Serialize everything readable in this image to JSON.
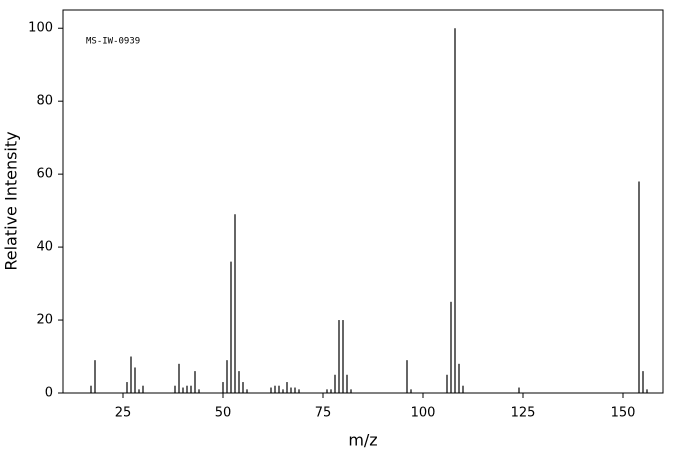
{
  "chart_data": {
    "type": "stem",
    "annotation": "MS-IW-0939",
    "xlabel": "m/z",
    "ylabel": "Relative Intensity",
    "x": [
      17,
      18,
      26,
      27,
      28,
      29,
      30,
      38,
      39,
      40,
      41,
      42,
      43,
      44,
      50,
      51,
      52,
      53,
      54,
      55,
      56,
      62,
      63,
      64,
      65,
      66,
      67,
      68,
      69,
      76,
      77,
      78,
      79,
      80,
      81,
      82,
      96,
      97,
      106,
      107,
      108,
      109,
      110,
      124,
      154,
      155,
      156
    ],
    "values": [
      2,
      9,
      3,
      10,
      7,
      1,
      2,
      2,
      8,
      1.5,
      2,
      2,
      6,
      1,
      3,
      9,
      36,
      49,
      6,
      3,
      1,
      1.5,
      2,
      2,
      1,
      3,
      1.5,
      1.5,
      1,
      1,
      1,
      5,
      20,
      20,
      5,
      1,
      9,
      1,
      5,
      25,
      100,
      8,
      2,
      1.5,
      58,
      6,
      1
    ],
    "color": "#000000",
    "xlim": [
      10,
      160
    ],
    "ylim": [
      0,
      105
    ],
    "xticks": [
      25,
      50,
      75,
      100,
      125,
      150
    ],
    "yticks": [
      0,
      20,
      40,
      60,
      80,
      100
    ]
  }
}
